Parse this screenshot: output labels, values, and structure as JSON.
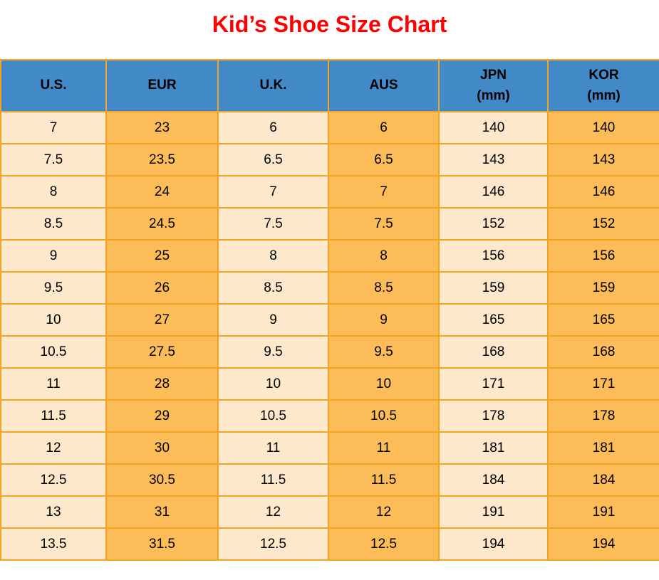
{
  "title": "Kid’s Shoe Size Chart",
  "colors": {
    "title": "#fe0000",
    "header_bg": "#4289c7",
    "col_light": "#fde8cc",
    "col_orange": "#fcbd59",
    "border": "#f5a41f",
    "text": "#000000"
  },
  "table": {
    "columns": [
      {
        "key": "us",
        "label": "U.S.",
        "sublabel": ""
      },
      {
        "key": "eur",
        "label": "EUR",
        "sublabel": ""
      },
      {
        "key": "uk",
        "label": "U.K.",
        "sublabel": ""
      },
      {
        "key": "aus",
        "label": "AUS",
        "sublabel": ""
      },
      {
        "key": "jpn",
        "label": "JPN",
        "sublabel": "(mm)"
      },
      {
        "key": "kor",
        "label": "KOR",
        "sublabel": "(mm)"
      }
    ],
    "rows": [
      [
        "7",
        "23",
        "6",
        "6",
        "140",
        "140"
      ],
      [
        "7.5",
        "23.5",
        "6.5",
        "6.5",
        "143",
        "143"
      ],
      [
        "8",
        "24",
        "7",
        "7",
        "146",
        "146"
      ],
      [
        "8.5",
        "24.5",
        "7.5",
        "7.5",
        "152",
        "152"
      ],
      [
        "9",
        "25",
        "8",
        "8",
        "156",
        "156"
      ],
      [
        "9.5",
        "26",
        "8.5",
        "8.5",
        "159",
        "159"
      ],
      [
        "10",
        "27",
        "9",
        "9",
        "165",
        "165"
      ],
      [
        "10.5",
        "27.5",
        "9.5",
        "9.5",
        "168",
        "168"
      ],
      [
        "11",
        "28",
        "10",
        "10",
        "171",
        "171"
      ],
      [
        "11.5",
        "29",
        "10.5",
        "10.5",
        "178",
        "178"
      ],
      [
        "12",
        "30",
        "11",
        "11",
        "181",
        "181"
      ],
      [
        "12.5",
        "30.5",
        "11.5",
        "11.5",
        "184",
        "184"
      ],
      [
        "13",
        "31",
        "12",
        "12",
        "191",
        "191"
      ],
      [
        "13.5",
        "31.5",
        "12.5",
        "12.5",
        "194",
        "194"
      ]
    ]
  },
  "chart_data": {
    "type": "table",
    "title": "Kid’s Shoe Size Chart",
    "columns": [
      "U.S.",
      "EUR",
      "U.K.",
      "AUS",
      "JPN (mm)",
      "KOR (mm)"
    ],
    "rows": [
      [
        7,
        23,
        6,
        6,
        140,
        140
      ],
      [
        7.5,
        23.5,
        6.5,
        6.5,
        143,
        143
      ],
      [
        8,
        24,
        7,
        7,
        146,
        146
      ],
      [
        8.5,
        24.5,
        7.5,
        7.5,
        152,
        152
      ],
      [
        9,
        25,
        8,
        8,
        156,
        156
      ],
      [
        9.5,
        26,
        8.5,
        8.5,
        159,
        159
      ],
      [
        10,
        27,
        9,
        9,
        165,
        165
      ],
      [
        10.5,
        27.5,
        9.5,
        9.5,
        168,
        168
      ],
      [
        11,
        28,
        10,
        10,
        171,
        171
      ],
      [
        11.5,
        29,
        10.5,
        10.5,
        178,
        178
      ],
      [
        12,
        30,
        11,
        11,
        181,
        181
      ],
      [
        12.5,
        30.5,
        11.5,
        11.5,
        184,
        184
      ],
      [
        13,
        31,
        12,
        12,
        191,
        191
      ],
      [
        13.5,
        31.5,
        12.5,
        12.5,
        194,
        194
      ]
    ]
  }
}
